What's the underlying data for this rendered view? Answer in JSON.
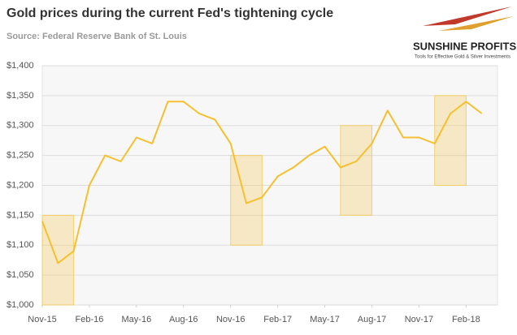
{
  "chart_data": {
    "type": "line",
    "title": "Gold prices during the current Fed's tightening cycle",
    "subtitle": "Source: Federal Reserve Bank of St. Louis",
    "logo": {
      "name": "SUNSHINE PROFITS",
      "tagline": "Tools for Effective Gold & Silver Investments"
    },
    "x": [
      "2015-11",
      "2015-12",
      "2016-01",
      "2016-02",
      "2016-03",
      "2016-04",
      "2016-05",
      "2016-06",
      "2016-07",
      "2016-08",
      "2016-09",
      "2016-10",
      "2016-11",
      "2016-12",
      "2017-01",
      "2017-02",
      "2017-03",
      "2017-04",
      "2017-05",
      "2017-06",
      "2017-07",
      "2017-08",
      "2017-09",
      "2017-10",
      "2017-11",
      "2017-12",
      "2018-01",
      "2018-02",
      "2018-03"
    ],
    "series": [
      {
        "name": "Gold price",
        "color": "#f5c030",
        "values": [
          1140,
          1070,
          1090,
          1200,
          1250,
          1240,
          1280,
          1270,
          1340,
          1340,
          1320,
          1310,
          1270,
          1170,
          1180,
          1215,
          1230,
          1250,
          1265,
          1230,
          1240,
          1270,
          1325,
          1280,
          1280,
          1270,
          1320,
          1340,
          1320
        ]
      }
    ],
    "highlights": [
      {
        "x": [
          "2015-11",
          "2016-01"
        ],
        "y": [
          1000,
          1150
        ]
      },
      {
        "x": [
          "2016-11",
          "2017-01"
        ],
        "y": [
          1100,
          1250
        ]
      },
      {
        "x": [
          "2017-06",
          "2017-08"
        ],
        "y": [
          1150,
          1300
        ]
      },
      {
        "x": [
          "2017-12",
          "2018-02"
        ],
        "y": [
          1200,
          1350
        ]
      }
    ],
    "highlight_color": "#f5c850",
    "xlim": [
      "2015-11",
      "2018-04"
    ],
    "xticks": [
      {
        "value": "2015-11",
        "label": "Nov-15"
      },
      {
        "value": "2016-02",
        "label": "Feb-16"
      },
      {
        "value": "2016-05",
        "label": "May-16"
      },
      {
        "value": "2016-08",
        "label": "Aug-16"
      },
      {
        "value": "2016-11",
        "label": "Nov-16"
      },
      {
        "value": "2017-02",
        "label": "Feb-17"
      },
      {
        "value": "2017-05",
        "label": "May-17"
      },
      {
        "value": "2017-08",
        "label": "Aug-17"
      },
      {
        "value": "2017-11",
        "label": "Nov-17"
      },
      {
        "value": "2018-02",
        "label": "Feb-18"
      }
    ],
    "ylim": [
      1000,
      1400
    ],
    "yticks": [
      {
        "value": 1000,
        "label": "$1,000"
      },
      {
        "value": 1050,
        "label": "$1,050"
      },
      {
        "value": 1100,
        "label": "$1,100"
      },
      {
        "value": 1150,
        "label": "$1,150"
      },
      {
        "value": 1200,
        "label": "$1,200"
      },
      {
        "value": 1250,
        "label": "$1,250"
      },
      {
        "value": 1300,
        "label": "$1,300"
      },
      {
        "value": 1350,
        "label": "$1,350"
      },
      {
        "value": 1400,
        "label": "$1,400"
      }
    ],
    "grid": true
  }
}
